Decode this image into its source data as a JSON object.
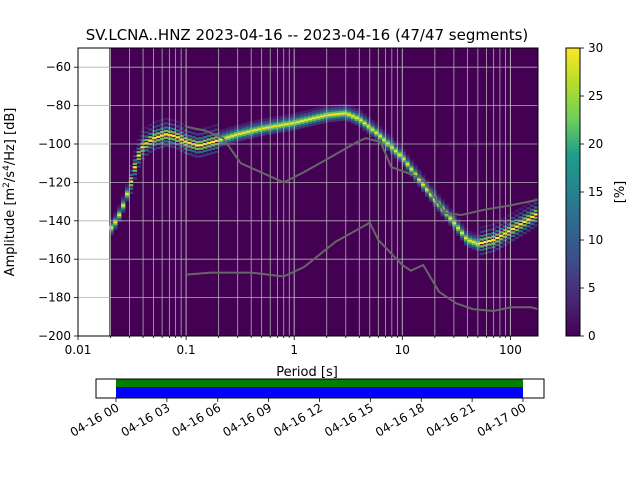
{
  "chart_data": {
    "type": "heatmap",
    "title": "SV.LCNA..HNZ   2023-04-16 -- 2023-04-16  (47/47 segments)",
    "xlabel": "Period [s]",
    "ylabel_main": "Amplitude [m",
    "ylabel_sup": "2",
    "ylabel_mid": "/s",
    "ylabel_sup2": "4",
    "ylabel_end": "/Hz] [dB]",
    "x_scale": "log",
    "xlim": [
      0.01,
      180
    ],
    "ylim": [
      -200,
      -50
    ],
    "x_ticks": [
      {
        "value": 0.01,
        "label": "0.01"
      },
      {
        "value": 0.1,
        "label": "0.1"
      },
      {
        "value": 1,
        "label": "1"
      },
      {
        "value": 10,
        "label": "10"
      },
      {
        "value": 100,
        "label": "100"
      }
    ],
    "y_ticks": [
      {
        "value": -60,
        "label": "−60"
      },
      {
        "value": -80,
        "label": "−80"
      },
      {
        "value": -100,
        "label": "−100"
      },
      {
        "value": -120,
        "label": "−120"
      },
      {
        "value": -140,
        "label": "−140"
      },
      {
        "value": -160,
        "label": "−160"
      },
      {
        "value": -180,
        "label": "−180"
      },
      {
        "value": -200,
        "label": "−200"
      }
    ],
    "data_start_period": 0.0195,
    "grid": true,
    "colorbar": {
      "label": "[%]",
      "range": [
        0,
        30
      ],
      "ticks": [
        {
          "value": 0,
          "label": "0"
        },
        {
          "value": 5,
          "label": "5"
        },
        {
          "value": 10,
          "label": "10"
        },
        {
          "value": 15,
          "label": "15"
        },
        {
          "value": 20,
          "label": "20"
        },
        {
          "value": 25,
          "label": "25"
        },
        {
          "value": 30,
          "label": "30"
        }
      ]
    },
    "psd_mode_curve": [
      [
        0.0195,
        -145
      ],
      [
        0.022,
        -141
      ],
      [
        0.025,
        -135
      ],
      [
        0.03,
        -122
      ],
      [
        0.035,
        -108
      ],
      [
        0.04,
        -101
      ],
      [
        0.05,
        -97
      ],
      [
        0.065,
        -95
      ],
      [
        0.08,
        -96
      ],
      [
        0.1,
        -99
      ],
      [
        0.13,
        -101
      ],
      [
        0.2,
        -98
      ],
      [
        0.3,
        -95
      ],
      [
        0.5,
        -92
      ],
      [
        1,
        -89
      ],
      [
        2,
        -85
      ],
      [
        3,
        -84
      ],
      [
        4,
        -87
      ],
      [
        6,
        -95
      ],
      [
        10,
        -107
      ],
      [
        15,
        -120
      ],
      [
        20,
        -129
      ],
      [
        30,
        -141
      ],
      [
        40,
        -150
      ],
      [
        50,
        -152
      ],
      [
        70,
        -150
      ],
      [
        100,
        -145
      ],
      [
        140,
        -140
      ],
      [
        180,
        -136
      ]
    ],
    "nhnm_curve": [
      [
        0.1,
        -91
      ],
      [
        0.15,
        -93
      ],
      [
        0.22,
        -97
      ],
      [
        0.32,
        -110
      ],
      [
        0.8,
        -120
      ],
      [
        1.2,
        -115
      ],
      [
        2,
        -108
      ],
      [
        3.8,
        -99
      ],
      [
        4.6,
        -97
      ],
      [
        6.3,
        -99
      ],
      [
        7.9,
        -112
      ],
      [
        15.4,
        -118
      ],
      [
        20,
        -128
      ],
      [
        25,
        -136
      ],
      [
        35,
        -137
      ],
      [
        60,
        -134
      ],
      [
        100,
        -132
      ],
      [
        180,
        -129
      ]
    ],
    "nlnm_curve": [
      [
        0.1,
        -168
      ],
      [
        0.17,
        -167
      ],
      [
        0.4,
        -167
      ],
      [
        0.8,
        -169
      ],
      [
        1.24,
        -164
      ],
      [
        2.4,
        -151
      ],
      [
        4.3,
        -143
      ],
      [
        5,
        -141
      ],
      [
        6,
        -150
      ],
      [
        10,
        -163
      ],
      [
        12,
        -166
      ],
      [
        15.6,
        -163
      ],
      [
        21.9,
        -177
      ],
      [
        31.6,
        -183
      ],
      [
        45,
        -186
      ],
      [
        70,
        -187
      ],
      [
        101,
        -185
      ],
      [
        154,
        -185
      ],
      [
        180,
        -186
      ]
    ],
    "time_axis": {
      "tick_labels": [
        "04-16 00",
        "04-16 03",
        "04-16 06",
        "04-16 09",
        "04-16 12",
        "04-16 15",
        "04-16 18",
        "04-16 21",
        "04-17 00"
      ],
      "coverage_hours": [
        0,
        24
      ],
      "bar_colors": [
        "#008000",
        "#0000ff"
      ]
    }
  },
  "colors": {
    "background_heat": "#440154",
    "mode_color": "#fde725",
    "noise_model_color": "#666666"
  }
}
